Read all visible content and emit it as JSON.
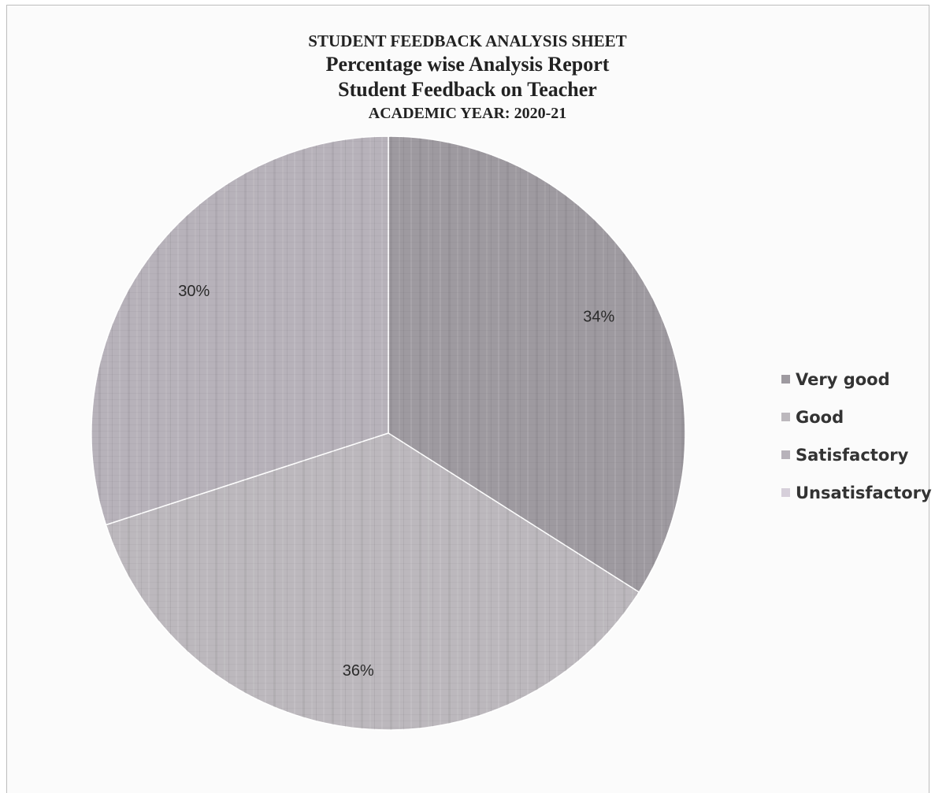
{
  "chart_data": {
    "type": "pie",
    "title_lines": [
      "STUDENT FEEDBACK ANALYSIS SHEET",
      "Percentage wise Analysis Report",
      "Student Feedback on Teacher",
      "ACADEMIC YEAR: 2020-21"
    ],
    "categories": [
      "Very good",
      "Good",
      "Satisfactory",
      "Unsatisfactory"
    ],
    "values": [
      34,
      36,
      30,
      0
    ],
    "data_labels": [
      "34%",
      "36%",
      "30%",
      ""
    ],
    "colors": [
      "#9e9aa0",
      "#bcb8bd",
      "#b7b2ba",
      "#d6cfda"
    ],
    "legend_position": "right",
    "start_angle": "12 o'clock",
    "direction": "clockwise"
  }
}
